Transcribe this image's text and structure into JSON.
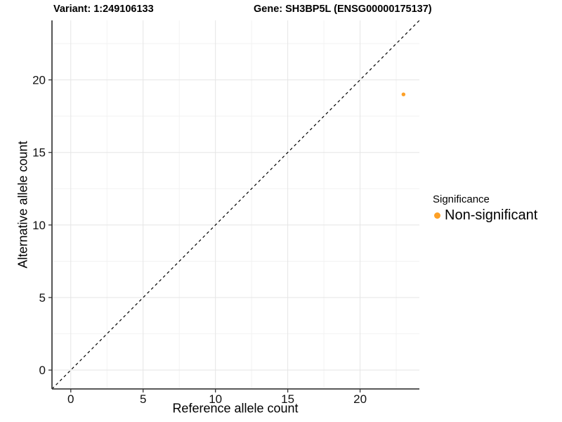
{
  "chart_data": {
    "type": "scatter",
    "titles": [
      "Variant: 1:249106133",
      "Gene: SH3BP5L (ENSG00000175137)"
    ],
    "xlabel": "Reference allele count",
    "ylabel": "Alternative allele count",
    "xlim": [
      -1.3,
      24.1
    ],
    "ylim": [
      -1.3,
      24.1
    ],
    "x_major_ticks": [
      0,
      5,
      10,
      15,
      20
    ],
    "x_minor_ticks": [
      2.5,
      7.5,
      12.5,
      17.5,
      22.5
    ],
    "y_major_ticks": [
      0,
      5,
      10,
      15,
      20
    ],
    "y_minor_ticks": [
      2.5,
      7.5,
      12.5,
      17.5,
      22.5
    ],
    "grid": true,
    "identity_line": {
      "style": "dashed",
      "color": "#000000",
      "slope": 1,
      "intercept": 0
    },
    "series": [
      {
        "name": "Non-significant",
        "color": "#FDA026",
        "points": [
          {
            "x": 23,
            "y": 19
          }
        ]
      }
    ],
    "legend": {
      "position": "right",
      "title": "Significance",
      "entries": [
        {
          "label": "Non-significant",
          "color": "#FDA026"
        }
      ]
    },
    "colors": {
      "background": "#ffffff",
      "grid_major": "#e5e5e5",
      "grid_minor": "#f2f2f2",
      "axis_line": "#424242",
      "tick_mark": "#333333",
      "tick_label": "#111111",
      "text": "#000000"
    }
  }
}
